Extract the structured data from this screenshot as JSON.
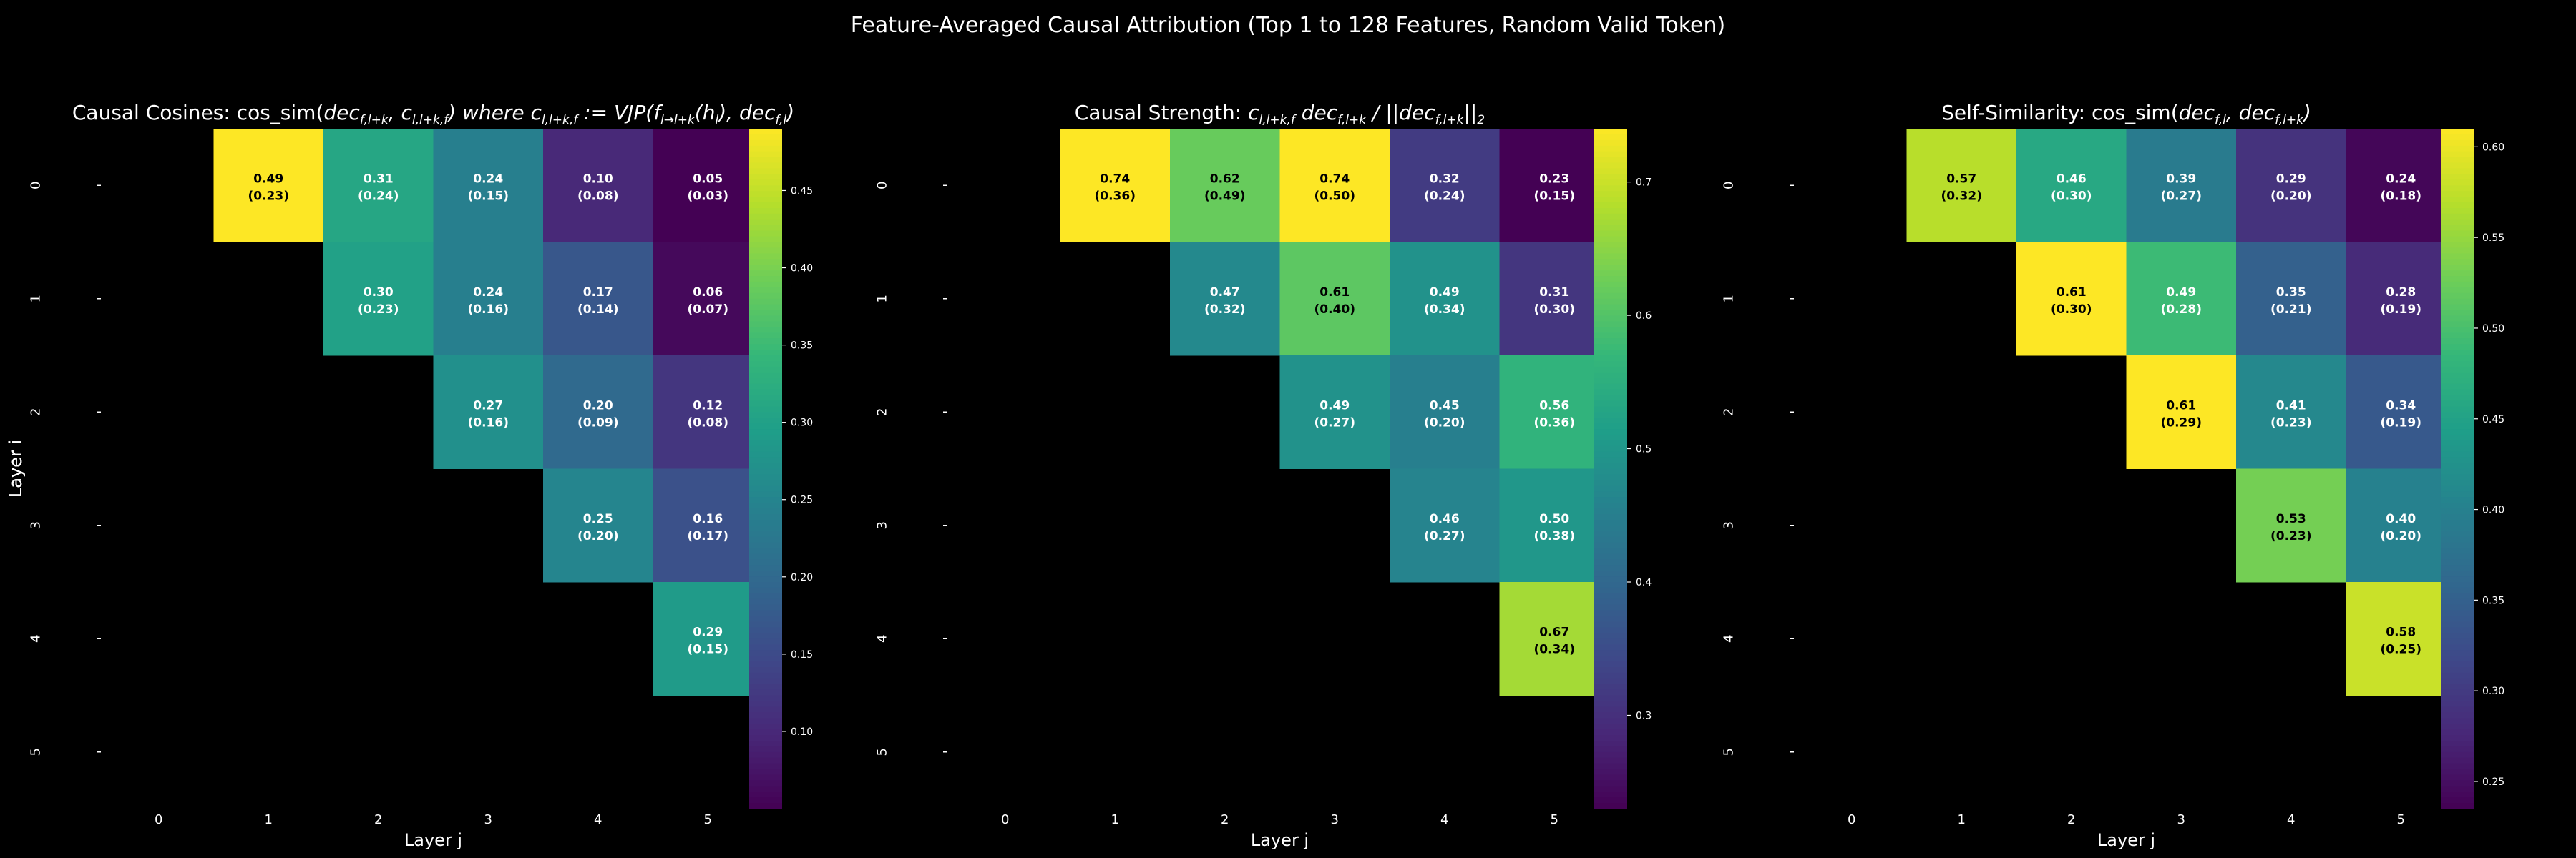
{
  "figure": {
    "suptitle": "Feature-Averaged Causal Attribution (Top 1 to 128 Features, Random Valid Token)"
  },
  "colors": {
    "background": "#000000",
    "viridis": [
      "#440154",
      "#482878",
      "#3e4989",
      "#31688e",
      "#26828e",
      "#1f9e89",
      "#35b779",
      "#6ece58",
      "#b5de2b",
      "#fde725"
    ]
  },
  "chart_data": [
    {
      "type": "heatmap",
      "title_text": "Causal Cosines: cos_sim(",
      "title_math": [
        {
          "t": "dec",
          "s": ""
        },
        {
          "t": "",
          "s": "f,l+k"
        },
        {
          "t": ", c",
          "s": ""
        },
        {
          "t": "",
          "s": "l,l+k,f"
        },
        {
          "t": ") where c",
          "s": ""
        },
        {
          "t": "",
          "s": "l,l+k,f"
        },
        {
          "t": " := VJP(f",
          "s": ""
        },
        {
          "t": "",
          "s": "l→l+k"
        },
        {
          "t": "(h",
          "s": ""
        },
        {
          "t": "",
          "s": "l"
        },
        {
          "t": "), dec",
          "s": ""
        },
        {
          "t": "",
          "s": "f,l"
        },
        {
          "t": ")",
          "s": ""
        }
      ],
      "xlabel": "Layer j",
      "ylabel": "Layer i",
      "x_ticks": [
        "0",
        "1",
        "2",
        "3",
        "4",
        "5"
      ],
      "y_ticks": [
        "0",
        "1",
        "2",
        "3",
        "4",
        "5"
      ],
      "mean": [
        [
          null,
          0.49,
          0.31,
          0.24,
          0.1,
          0.05
        ],
        [
          null,
          null,
          0.3,
          0.24,
          0.17,
          0.06
        ],
        [
          null,
          null,
          null,
          0.27,
          0.2,
          0.12
        ],
        [
          null,
          null,
          null,
          null,
          0.25,
          0.16
        ],
        [
          null,
          null,
          null,
          null,
          null,
          0.29
        ],
        [
          null,
          null,
          null,
          null,
          null,
          null
        ]
      ],
      "std": [
        [
          null,
          0.23,
          0.24,
          0.15,
          0.08,
          0.03
        ],
        [
          null,
          null,
          0.23,
          0.16,
          0.14,
          0.07
        ],
        [
          null,
          null,
          null,
          0.16,
          0.09,
          0.08
        ],
        [
          null,
          null,
          null,
          null,
          0.2,
          0.17
        ],
        [
          null,
          null,
          null,
          null,
          null,
          0.15
        ],
        [
          null,
          null,
          null,
          null,
          null,
          null
        ]
      ],
      "mean_labels": [
        [
          null,
          "0.49",
          "0.31",
          "0.24",
          "0.10",
          "0.05"
        ],
        [
          null,
          null,
          "0.30",
          "0.24",
          "0.17",
          "0.06"
        ],
        [
          null,
          null,
          null,
          "0.27",
          "0.20",
          "0.12"
        ],
        [
          null,
          null,
          null,
          null,
          "0.25",
          "0.16"
        ],
        [
          null,
          null,
          null,
          null,
          null,
          "0.29"
        ],
        [
          null,
          null,
          null,
          null,
          null,
          null
        ]
      ],
      "std_labels": [
        [
          null,
          "(0.23)",
          "(0.24)",
          "(0.15)",
          "(0.08)",
          "(0.03)"
        ],
        [
          null,
          null,
          "(0.23)",
          "(0.16)",
          "(0.14)",
          "(0.07)"
        ],
        [
          null,
          null,
          null,
          "(0.16)",
          "(0.09)",
          "(0.08)"
        ],
        [
          null,
          null,
          null,
          null,
          "(0.20)",
          "(0.17)"
        ],
        [
          null,
          null,
          null,
          null,
          null,
          "(0.15)"
        ],
        [
          null,
          null,
          null,
          null,
          null,
          null
        ]
      ],
      "vmin": 0.05,
      "vmax": 0.49,
      "colorbar_ticks": [
        0.1,
        0.15,
        0.2,
        0.25,
        0.3,
        0.35,
        0.4,
        0.45
      ],
      "colorbar_tick_labels": [
        "0.10",
        "0.15",
        "0.20",
        "0.25",
        "0.30",
        "0.35",
        "0.40",
        "0.45"
      ]
    },
    {
      "type": "heatmap",
      "title_text": "Causal Strength: ",
      "title_math": [
        {
          "t": "c",
          "s": ""
        },
        {
          "t": "",
          "s": "l,l+k,f"
        },
        {
          "t": " dec",
          "s": ""
        },
        {
          "t": "",
          "s": "f,l+k"
        },
        {
          "t": " / ||dec",
          "s": ""
        },
        {
          "t": "",
          "s": "f,l+k"
        },
        {
          "t": "||",
          "s": ""
        },
        {
          "t": "",
          "s": "2"
        }
      ],
      "xlabel": "Layer j",
      "ylabel": "Layer i",
      "x_ticks": [
        "0",
        "1",
        "2",
        "3",
        "4",
        "5"
      ],
      "y_ticks": [
        "0",
        "1",
        "2",
        "3",
        "4",
        "5"
      ],
      "mean": [
        [
          null,
          0.74,
          0.62,
          0.74,
          0.32,
          0.23
        ],
        [
          null,
          null,
          0.47,
          0.61,
          0.49,
          0.31
        ],
        [
          null,
          null,
          null,
          0.49,
          0.45,
          0.56
        ],
        [
          null,
          null,
          null,
          null,
          0.46,
          0.5
        ],
        [
          null,
          null,
          null,
          null,
          null,
          0.67
        ],
        [
          null,
          null,
          null,
          null,
          null,
          null
        ]
      ],
      "std": [
        [
          null,
          0.36,
          0.49,
          0.5,
          0.24,
          0.15
        ],
        [
          null,
          null,
          0.32,
          0.4,
          0.34,
          0.3
        ],
        [
          null,
          null,
          null,
          0.27,
          0.2,
          0.36
        ],
        [
          null,
          null,
          null,
          null,
          0.27,
          0.38
        ],
        [
          null,
          null,
          null,
          null,
          null,
          0.34
        ],
        [
          null,
          null,
          null,
          null,
          null,
          null
        ]
      ],
      "mean_labels": [
        [
          null,
          "0.74",
          "0.62",
          "0.74",
          "0.32",
          "0.23"
        ],
        [
          null,
          null,
          "0.47",
          "0.61",
          "0.49",
          "0.31"
        ],
        [
          null,
          null,
          null,
          "0.49",
          "0.45",
          "0.56"
        ],
        [
          null,
          null,
          null,
          null,
          "0.46",
          "0.50"
        ],
        [
          null,
          null,
          null,
          null,
          null,
          "0.67"
        ],
        [
          null,
          null,
          null,
          null,
          null,
          null
        ]
      ],
      "std_labels": [
        [
          null,
          "(0.36)",
          "(0.49)",
          "(0.50)",
          "(0.24)",
          "(0.15)"
        ],
        [
          null,
          null,
          "(0.32)",
          "(0.40)",
          "(0.34)",
          "(0.30)"
        ],
        [
          null,
          null,
          null,
          "(0.27)",
          "(0.20)",
          "(0.36)"
        ],
        [
          null,
          null,
          null,
          null,
          "(0.27)",
          "(0.38)"
        ],
        [
          null,
          null,
          null,
          null,
          null,
          "(0.34)"
        ],
        [
          null,
          null,
          null,
          null,
          null,
          null
        ]
      ],
      "vmin": 0.23,
      "vmax": 0.74,
      "colorbar_ticks": [
        0.3,
        0.4,
        0.5,
        0.6,
        0.7
      ],
      "colorbar_tick_labels": [
        "0.3",
        "0.4",
        "0.5",
        "0.6",
        "0.7"
      ]
    },
    {
      "type": "heatmap",
      "title_text": "Self-Similarity: cos_sim(",
      "title_math": [
        {
          "t": "dec",
          "s": ""
        },
        {
          "t": "",
          "s": "f,l"
        },
        {
          "t": ", dec",
          "s": ""
        },
        {
          "t": "",
          "s": "f,l+k"
        },
        {
          "t": ")",
          "s": ""
        }
      ],
      "xlabel": "Layer j",
      "ylabel": "Layer i",
      "x_ticks": [
        "0",
        "1",
        "2",
        "3",
        "4",
        "5"
      ],
      "y_ticks": [
        "0",
        "1",
        "2",
        "3",
        "4",
        "5"
      ],
      "mean": [
        [
          null,
          0.57,
          0.46,
          0.39,
          0.29,
          0.24
        ],
        [
          null,
          null,
          0.61,
          0.49,
          0.35,
          0.28
        ],
        [
          null,
          null,
          null,
          0.61,
          0.41,
          0.34
        ],
        [
          null,
          null,
          null,
          null,
          0.53,
          0.4
        ],
        [
          null,
          null,
          null,
          null,
          null,
          0.58
        ],
        [
          null,
          null,
          null,
          null,
          null,
          null
        ]
      ],
      "std": [
        [
          null,
          0.32,
          0.3,
          0.27,
          0.2,
          0.18
        ],
        [
          null,
          null,
          0.3,
          0.28,
          0.21,
          0.19
        ],
        [
          null,
          null,
          null,
          0.29,
          0.23,
          0.19
        ],
        [
          null,
          null,
          null,
          null,
          0.23,
          0.2
        ],
        [
          null,
          null,
          null,
          null,
          null,
          0.25
        ],
        [
          null,
          null,
          null,
          null,
          null,
          null
        ]
      ],
      "mean_labels": [
        [
          null,
          "0.57",
          "0.46",
          "0.39",
          "0.29",
          "0.24"
        ],
        [
          null,
          null,
          "0.61",
          "0.49",
          "0.35",
          "0.28"
        ],
        [
          null,
          null,
          null,
          "0.61",
          "0.41",
          "0.34"
        ],
        [
          null,
          null,
          null,
          null,
          "0.53",
          "0.40"
        ],
        [
          null,
          null,
          null,
          null,
          null,
          "0.58"
        ],
        [
          null,
          null,
          null,
          null,
          null,
          null
        ]
      ],
      "std_labels": [
        [
          null,
          "(0.32)",
          "(0.30)",
          "(0.27)",
          "(0.20)",
          "(0.18)"
        ],
        [
          null,
          null,
          "(0.30)",
          "(0.28)",
          "(0.21)",
          "(0.19)"
        ],
        [
          null,
          null,
          null,
          "(0.29)",
          "(0.23)",
          "(0.19)"
        ],
        [
          null,
          null,
          null,
          null,
          "(0.23)",
          "(0.20)"
        ],
        [
          null,
          null,
          null,
          null,
          null,
          "(0.25)"
        ],
        [
          null,
          null,
          null,
          null,
          null,
          null
        ]
      ],
      "vmin": 0.235,
      "vmax": 0.61,
      "colorbar_ticks": [
        0.25,
        0.3,
        0.35,
        0.4,
        0.45,
        0.5,
        0.55,
        0.6
      ],
      "colorbar_tick_labels": [
        "0.25",
        "0.30",
        "0.35",
        "0.40",
        "0.45",
        "0.50",
        "0.55",
        "0.60"
      ]
    }
  ]
}
